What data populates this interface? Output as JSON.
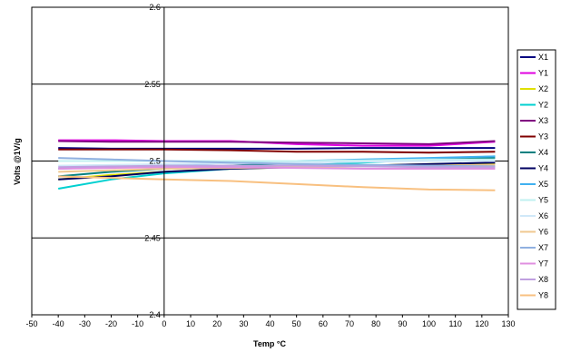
{
  "chart_data": {
    "type": "line",
    "title": "",
    "xlabel": "Temp °C",
    "ylabel": "Volts @1V/g",
    "xlim": [
      -50,
      130
    ],
    "ylim": [
      2.4,
      2.6
    ],
    "x_ticks": [
      "-50",
      "-40",
      "-30",
      "-20",
      "-10",
      "0",
      "10",
      "20",
      "30",
      "40",
      "50",
      "60",
      "70",
      "80",
      "90",
      "100",
      "110",
      "120",
      "130"
    ],
    "y_ticks": [
      "2.4",
      "2.45",
      "2.5",
      "2.55",
      "2.6"
    ],
    "grid": "major-y",
    "legend_position": "right",
    "x": [
      -40,
      -20,
      0,
      25,
      50,
      75,
      100,
      125
    ],
    "series": [
      {
        "name": "X1",
        "color": "#000080",
        "values": [
          2.5085,
          2.508,
          2.508,
          2.508,
          2.508,
          2.5085,
          2.5085,
          2.5085
        ]
      },
      {
        "name": "Y1",
        "color": "#e000e0",
        "values": [
          2.5135,
          2.5135,
          2.513,
          2.513,
          2.511,
          2.51,
          2.51,
          2.5125
        ]
      },
      {
        "name": "X2",
        "color": "#e0e000",
        "values": [
          2.488,
          2.491,
          2.493,
          2.495,
          2.496,
          2.497,
          2.498,
          2.4985
        ]
      },
      {
        "name": "Y2",
        "color": "#00d0d0",
        "values": [
          2.482,
          2.488,
          2.492,
          2.495,
          2.497,
          2.499,
          2.501,
          2.503
        ]
      },
      {
        "name": "X3",
        "color": "#800080",
        "values": [
          2.513,
          2.5125,
          2.5125,
          2.5125,
          2.512,
          2.5115,
          2.511,
          2.513
        ]
      },
      {
        "name": "Y3",
        "color": "#800000",
        "values": [
          2.5075,
          2.5075,
          2.5075,
          2.507,
          2.506,
          2.506,
          2.5055,
          2.506
        ]
      },
      {
        "name": "X4",
        "color": "#008080",
        "values": [
          2.49,
          2.493,
          2.495,
          2.497,
          2.499,
          2.5,
          2.501,
          2.502
        ]
      },
      {
        "name": "Y4",
        "color": "#000060",
        "values": [
          2.488,
          2.49,
          2.493,
          2.495,
          2.496,
          2.497,
          2.498,
          2.499
        ]
      },
      {
        "name": "X5",
        "color": "#40b0f0",
        "values": [
          2.495,
          2.496,
          2.497,
          2.499,
          2.5,
          2.501,
          2.502,
          2.503
        ]
      },
      {
        "name": "Y5",
        "color": "#c0f0f0",
        "values": [
          2.5,
          2.5,
          2.5,
          2.5,
          2.5,
          2.5005,
          2.501,
          2.501
        ]
      },
      {
        "name": "X6",
        "color": "#d0e8f8",
        "values": [
          2.497,
          2.4975,
          2.498,
          2.4985,
          2.499,
          2.4995,
          2.5,
          2.5
        ]
      },
      {
        "name": "Y6",
        "color": "#f0c890",
        "values": [
          2.493,
          2.494,
          2.495,
          2.4955,
          2.496,
          2.4965,
          2.497,
          2.4975
        ]
      },
      {
        "name": "X7",
        "color": "#90b0e0",
        "values": [
          2.502,
          2.501,
          2.5,
          2.499,
          2.498,
          2.4975,
          2.497,
          2.4965
        ]
      },
      {
        "name": "Y7",
        "color": "#e090e0",
        "values": [
          2.495,
          2.4955,
          2.496,
          2.496,
          2.4955,
          2.495,
          2.495,
          2.495
        ]
      },
      {
        "name": "X8",
        "color": "#c0a0e0",
        "values": [
          2.496,
          2.4965,
          2.497,
          2.497,
          2.497,
          2.4965,
          2.496,
          2.496
        ]
      },
      {
        "name": "Y8",
        "color": "#f8c080",
        "values": [
          2.49,
          2.489,
          2.488,
          2.487,
          2.485,
          2.483,
          2.4815,
          2.481
        ]
      }
    ]
  }
}
